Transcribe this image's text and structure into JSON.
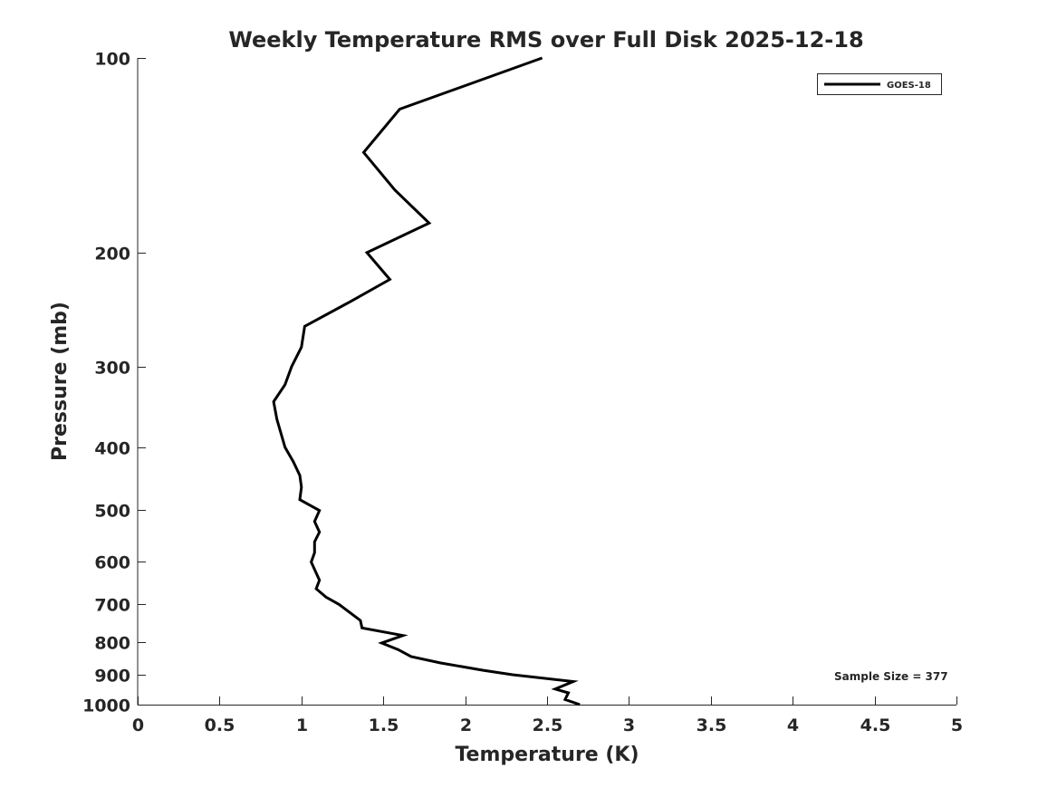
{
  "chart_data": {
    "type": "line",
    "title": "Weekly Temperature RMS over Full Disk 2025-12-18",
    "xlabel": "Temperature (K)",
    "ylabel": "Pressure (mb)",
    "xlim": [
      0,
      5
    ],
    "ylim": [
      100,
      1000
    ],
    "yscale": "log",
    "y_reversed": true,
    "grid": false,
    "legend_position": "top-right",
    "xticks": [
      0,
      0.5,
      1,
      1.5,
      2,
      2.5,
      3,
      3.5,
      4,
      4.5,
      5
    ],
    "xtick_labels": [
      "0",
      "0.5",
      "1",
      "1.5",
      "2",
      "2.5",
      "3",
      "3.5",
      "4",
      "4.5",
      "5"
    ],
    "yticks": [
      100,
      200,
      300,
      400,
      500,
      600,
      700,
      800,
      900,
      1000
    ],
    "ytick_labels": [
      "100",
      "200",
      "300",
      "400",
      "500",
      "600",
      "700",
      "800",
      "900",
      "1000"
    ],
    "annotation": "Sample Size = 377",
    "series": [
      {
        "name": "GOES-18",
        "color": "#000000",
        "x": [
          2.47,
          1.6,
          1.38,
          1.57,
          1.78,
          1.4,
          1.54,
          1.3,
          1.02,
          1.0,
          0.94,
          0.9,
          0.83,
          0.85,
          0.9,
          0.95,
          0.99,
          1.0,
          0.99,
          1.11,
          1.08,
          1.11,
          1.08,
          1.08,
          1.06,
          1.11,
          1.09,
          1.15,
          1.23,
          1.36,
          1.37,
          1.62,
          1.49,
          1.59,
          1.67,
          1.85,
          2.11,
          2.29,
          2.66,
          2.55,
          2.63,
          2.61,
          2.7
        ],
        "y": [
          100,
          120,
          140,
          160,
          180,
          200,
          220,
          238,
          260,
          280,
          300,
          320,
          340,
          362,
          400,
          421,
          442,
          461,
          482,
          501,
          521,
          541,
          560,
          582,
          602,
          642,
          662,
          682,
          700,
          741,
          761,
          782,
          803,
          822,
          843,
          862,
          885,
          899,
          921,
          946,
          959,
          982,
          1000
        ]
      }
    ]
  }
}
